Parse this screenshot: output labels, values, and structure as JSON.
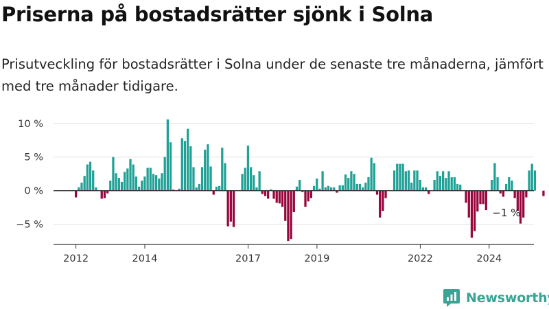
{
  "title": "Priserna på bostadsrätter sjönk i Solna",
  "subtitle": "Prisutveckling för bostadsrätter i Solna under de senaste tre månaderna, jämfört med tre månader tidigare.",
  "brand": {
    "name": "Newsworthy",
    "color": "#3aa394"
  },
  "colors": {
    "positive": "#1fa196",
    "negative": "#97073d"
  },
  "chart_data": {
    "type": "bar",
    "title": "Priserna på bostadsrätter sjönk i Solna",
    "xlabel": "",
    "ylabel": "",
    "ylim": [
      -8,
      11
    ],
    "xlim": [
      2011.35,
      2025.3
    ],
    "y_ticks": [
      {
        "value": 10,
        "label": "10 %"
      },
      {
        "value": 5,
        "label": "5 %"
      },
      {
        "value": 0,
        "label": "0 %"
      },
      {
        "value": -5,
        "label": "−5 %"
      }
    ],
    "x_ticks": [
      {
        "value": 2012,
        "label": "2012"
      },
      {
        "value": 2014,
        "label": "2014"
      },
      {
        "value": 2017,
        "label": "2017"
      },
      {
        "value": 2019,
        "label": "2019"
      },
      {
        "value": 2022,
        "label": "2022"
      },
      {
        "value": 2024,
        "label": "2024"
      }
    ],
    "start": 2012.0,
    "step": 0.0833,
    "values": [
      -1.0,
      0.5,
      1.2,
      2.2,
      3.9,
      4.3,
      3.0,
      0.5,
      0,
      -1.2,
      -1.1,
      -0.4,
      1.5,
      5.0,
      2.6,
      1.9,
      1.3,
      2.8,
      3.3,
      4.7,
      3.9,
      2.1,
      0.6,
      1.5,
      2.1,
      3.4,
      3.4,
      2.5,
      2.3,
      1.8,
      2.6,
      5.0,
      10.6,
      7.2,
      0.2,
      0,
      0.3,
      7.8,
      7.4,
      9.2,
      6.6,
      3.5,
      0.5,
      1.0,
      3.5,
      6.1,
      6.9,
      3.6,
      -0.6,
      0.6,
      0.7,
      6.4,
      4.1,
      -5.3,
      -4.6,
      -5.4,
      0,
      0,
      2.5,
      3.4,
      6.7,
      3.5,
      2.3,
      0.5,
      2.9,
      -0.5,
      -0.8,
      -1.2,
      0.2,
      -1.2,
      -1.8,
      -1.9,
      -2.4,
      -4.5,
      -7.5,
      -7.2,
      -3.2,
      0.6,
      1.6,
      -0.2,
      -2.4,
      -1.6,
      -1.1,
      0.7,
      1.8,
      0.3,
      2.9,
      0.5,
      0.7,
      0.5,
      0.5,
      -0.3,
      0.8,
      0.8,
      2.4,
      1.9,
      2.9,
      2.5,
      1.0,
      1.0,
      0.5,
      1.2,
      2.0,
      4.9,
      4.1,
      -0.6,
      -4.0,
      -3.0,
      -1.1,
      0,
      0,
      3.0,
      4.0,
      4.0,
      4.0,
      2.9,
      3.0,
      1.2,
      3.0,
      3.0,
      1.6,
      0.5,
      0.5,
      -0.5,
      0,
      1.6,
      2.9,
      2.2,
      2.9,
      1.9,
      2.9,
      2.0,
      2.0,
      1.0,
      0.9,
      0,
      -1.8,
      -4.0,
      -7.0,
      -6.0,
      -3.1,
      -2.0,
      -2.0,
      -2.9,
      0,
      1.6,
      4.1,
      2.0,
      -0.4,
      -0.9,
      1.0,
      2.0,
      1.5,
      -1.1,
      -3.0,
      -4.9,
      -4.0,
      -1.0,
      3.0,
      4.0,
      3.0,
      0,
      0,
      -0.8
    ],
    "annotations": [
      {
        "text": "−1 %",
        "x": 2024.5,
        "y": -3.3
      }
    ]
  }
}
